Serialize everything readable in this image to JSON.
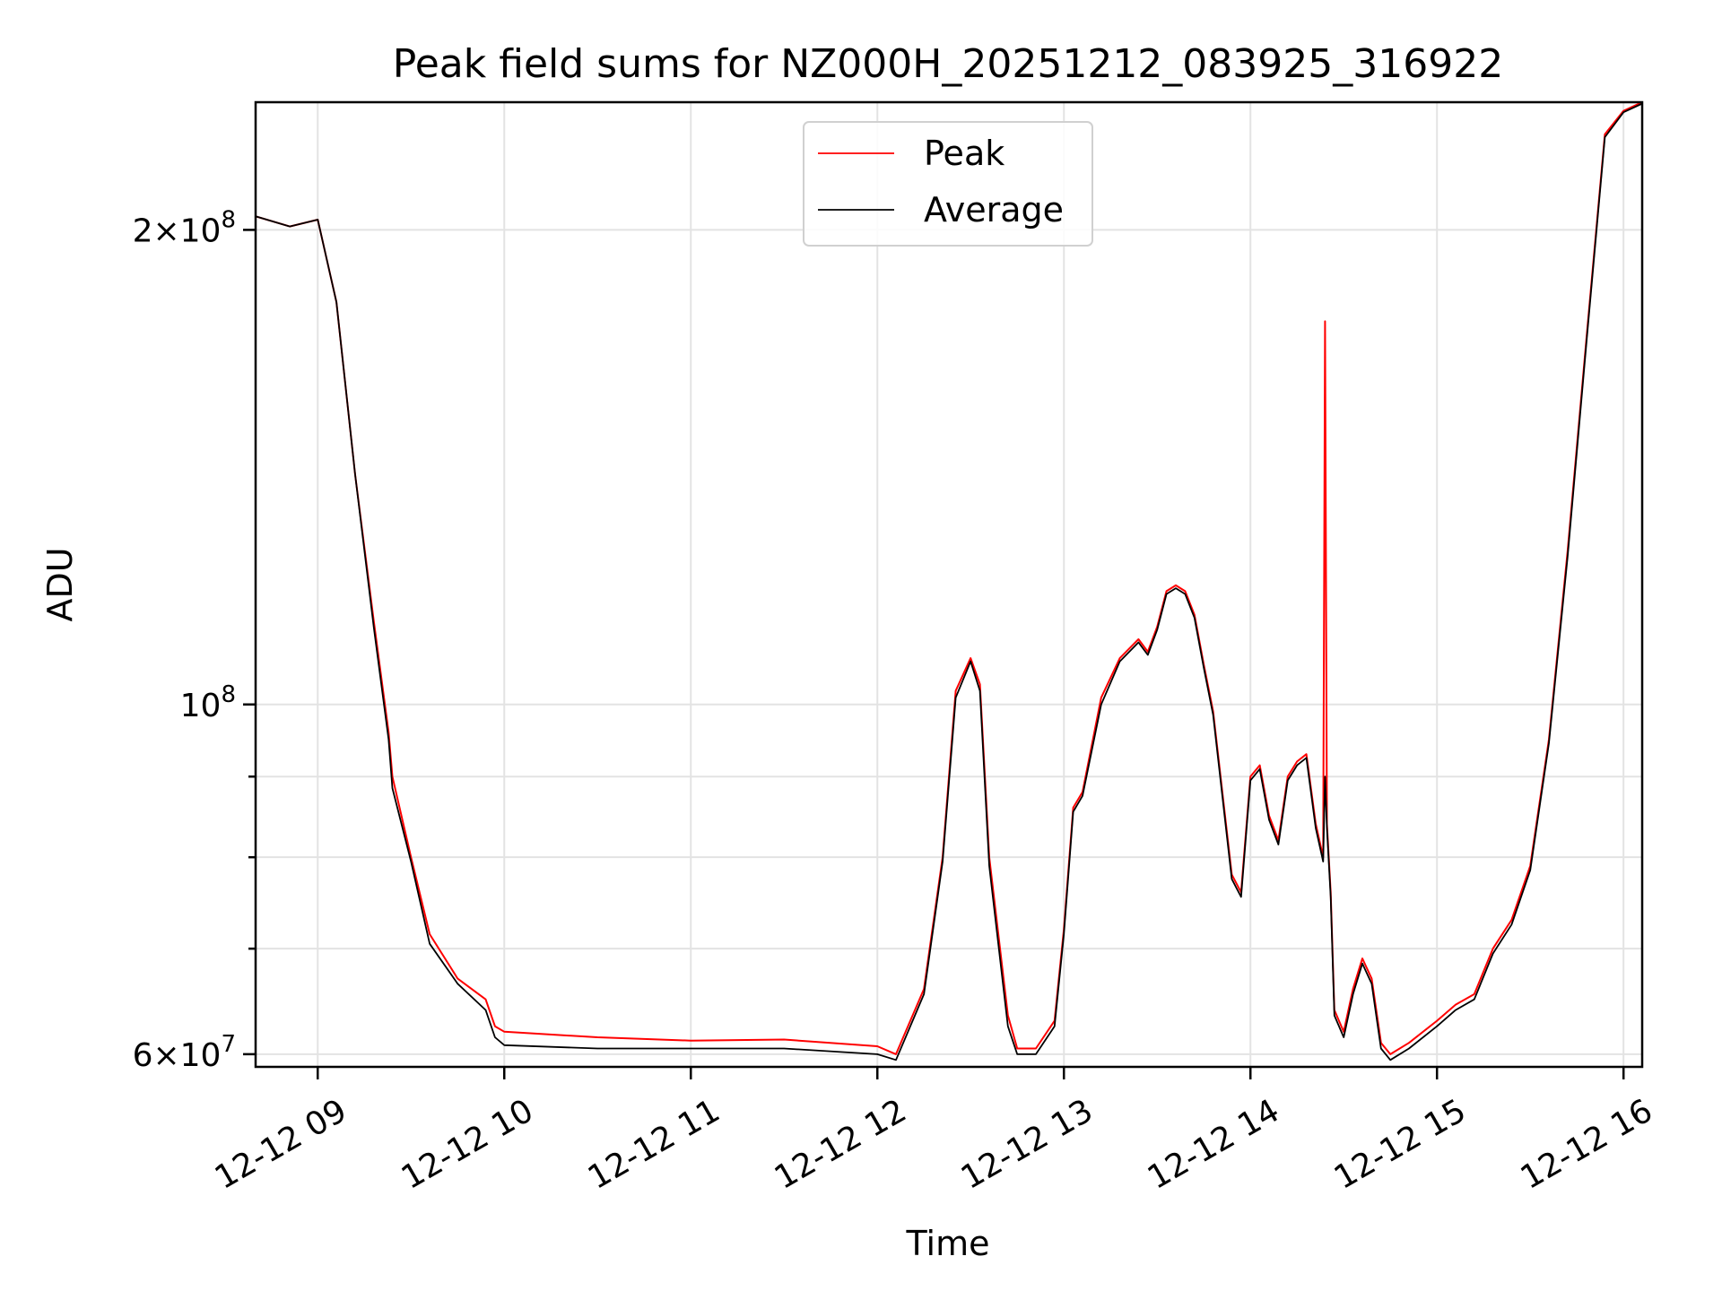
{
  "chart_data": {
    "type": "line",
    "title": "Peak field sums for NZ000H_20251212_083925_316922",
    "xlabel": "Time",
    "ylabel": "ADU",
    "y_scale": "log",
    "ylim": [
      58900000,
      241000000
    ],
    "xlim_hours": [
      8.667,
      16.1
    ],
    "grid": true,
    "legend_location": "upper-center",
    "x_ticks": [
      {
        "value": 9,
        "label": "12-12 09"
      },
      {
        "value": 10,
        "label": "12-12 10"
      },
      {
        "value": 11,
        "label": "12-12 11"
      },
      {
        "value": 12,
        "label": "12-12 12"
      },
      {
        "value": 13,
        "label": "12-12 13"
      },
      {
        "value": 14,
        "label": "12-12 14"
      },
      {
        "value": 15,
        "label": "12-12 15"
      },
      {
        "value": 16,
        "label": "12-12 16"
      }
    ],
    "y_major_ticks": [
      {
        "value": 60000000,
        "base": "6×10",
        "exp": "7"
      },
      {
        "value": 100000000,
        "base": "10",
        "exp": "8"
      },
      {
        "value": 200000000,
        "base": "2×10",
        "exp": "8"
      }
    ],
    "y_minor_ticks": [
      70000000,
      80000000,
      90000000
    ],
    "series": [
      {
        "name": "Peak",
        "color": "#ff0000",
        "x": [
          8.667,
          8.85,
          9.0,
          9.1,
          9.2,
          9.3,
          9.38,
          9.4,
          9.5,
          9.6,
          9.75,
          9.9,
          9.95,
          10.0,
          10.5,
          11.0,
          11.5,
          12.0,
          12.1,
          12.25,
          12.35,
          12.42,
          12.5,
          12.55,
          12.6,
          12.7,
          12.75,
          12.85,
          12.95,
          13.0,
          13.05,
          13.1,
          13.2,
          13.3,
          13.4,
          13.45,
          13.5,
          13.55,
          13.6,
          13.65,
          13.7,
          13.75,
          13.8,
          13.9,
          13.95,
          14.0,
          14.05,
          14.1,
          14.15,
          14.2,
          14.25,
          14.3,
          14.35,
          14.39,
          14.4,
          14.41,
          14.43,
          14.45,
          14.5,
          14.55,
          14.6,
          14.65,
          14.7,
          14.75,
          14.85,
          15.0,
          15.1,
          15.2,
          15.3,
          15.4,
          15.5,
          15.6,
          15.7,
          15.8,
          15.9,
          16.0,
          16.1
        ],
        "y": [
          204000000,
          201000000,
          203000000,
          180000000,
          140000000,
          113000000,
          96000000,
          90000000,
          80000000,
          71500000,
          67000000,
          65000000,
          62500000,
          62000000,
          61500000,
          61200000,
          61300000,
          60700000,
          60000000,
          66000000,
          80000000,
          102000000,
          107000000,
          103000000,
          80000000,
          63500000,
          60500000,
          60500000,
          63000000,
          72000000,
          86000000,
          88000000,
          101000000,
          107000000,
          110000000,
          108000000,
          112000000,
          118000000,
          119000000,
          118000000,
          114000000,
          106000000,
          99000000,
          78000000,
          76000000,
          90000000,
          91500000,
          85000000,
          82000000,
          90000000,
          92000000,
          93000000,
          84000000,
          80000000,
          175000000,
          84000000,
          76000000,
          64000000,
          62000000,
          66000000,
          69000000,
          67000000,
          61000000,
          60000000,
          61000000,
          63000000,
          64500000,
          65500000,
          70000000,
          73000000,
          79000000,
          95000000,
          125000000,
          170000000,
          230000000,
          238000000,
          241000000
        ]
      },
      {
        "name": "Average",
        "color": "#000000",
        "x": [
          8.667,
          8.85,
          9.0,
          9.1,
          9.2,
          9.3,
          9.38,
          9.4,
          9.5,
          9.6,
          9.75,
          9.9,
          9.95,
          10.0,
          10.5,
          11.0,
          11.5,
          12.0,
          12.1,
          12.25,
          12.35,
          12.42,
          12.5,
          12.55,
          12.6,
          12.7,
          12.75,
          12.85,
          12.95,
          13.0,
          13.05,
          13.1,
          13.2,
          13.3,
          13.4,
          13.45,
          13.5,
          13.55,
          13.6,
          13.65,
          13.7,
          13.75,
          13.8,
          13.9,
          13.95,
          14.0,
          14.05,
          14.1,
          14.15,
          14.2,
          14.25,
          14.3,
          14.35,
          14.39,
          14.4,
          14.41,
          14.43,
          14.45,
          14.5,
          14.55,
          14.6,
          14.65,
          14.7,
          14.75,
          14.85,
          15.0,
          15.1,
          15.2,
          15.3,
          15.4,
          15.5,
          15.6,
          15.7,
          15.8,
          15.9,
          16.0,
          16.1
        ],
        "y": [
          204000000,
          201000000,
          203000000,
          180000000,
          140000000,
          112000000,
          95000000,
          88500000,
          79500000,
          70500000,
          66500000,
          64000000,
          61500000,
          60800000,
          60500000,
          60500000,
          60500000,
          60000000,
          59500000,
          65500000,
          79500000,
          101000000,
          106500000,
          102000000,
          79000000,
          62500000,
          60000000,
          60000000,
          62500000,
          71500000,
          85500000,
          87500000,
          100000000,
          106500000,
          109500000,
          107500000,
          111500000,
          117500000,
          118500000,
          117500000,
          113500000,
          105500000,
          98500000,
          77500000,
          75500000,
          89500000,
          91000000,
          84500000,
          81500000,
          89500000,
          91500000,
          92500000,
          83500000,
          79500000,
          90000000,
          83500000,
          75500000,
          63500000,
          61500000,
          65500000,
          68500000,
          66500000,
          60500000,
          59500000,
          60500000,
          62500000,
          64000000,
          65000000,
          69500000,
          72500000,
          78500000,
          94500000,
          124000000,
          169000000,
          229000000,
          237500000,
          240500000
        ]
      }
    ]
  }
}
